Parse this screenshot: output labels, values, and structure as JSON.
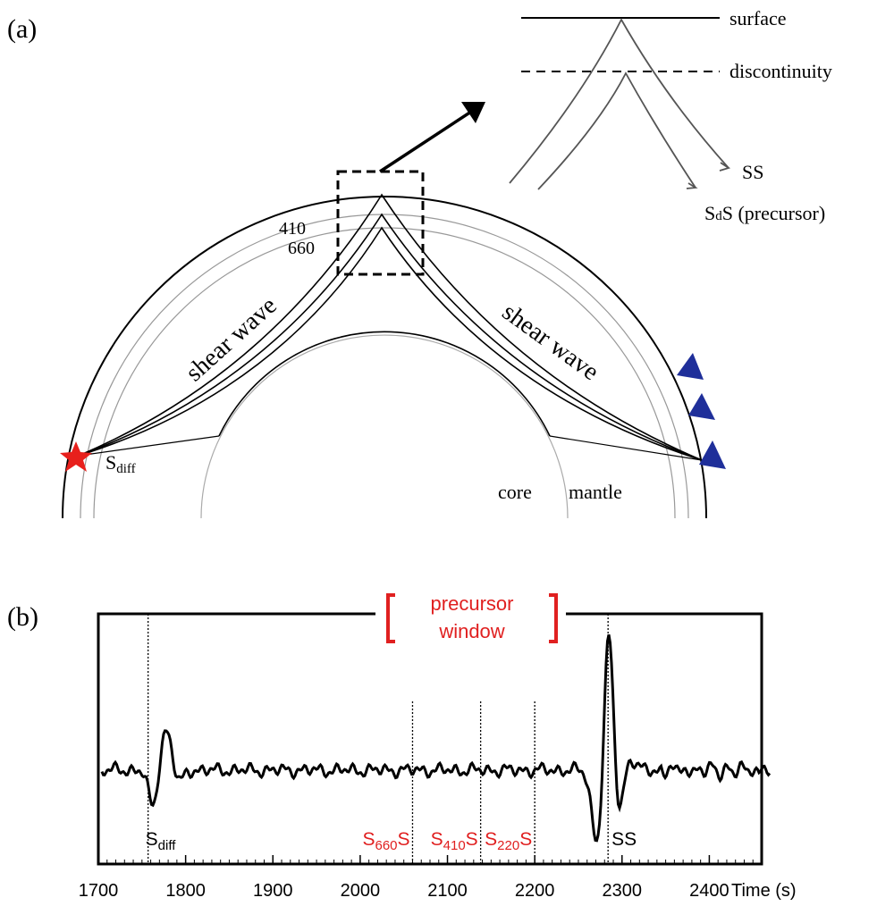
{
  "panel_a": {
    "label": "(a)",
    "surface": "surface",
    "discontinuity": "discontinuity",
    "ss": "SS",
    "sds": {
      "base": "S",
      "sub": "d",
      "rest": "S (precursor)"
    },
    "depth_410": "410",
    "depth_660": "660",
    "shear_wave_left": "shear wave",
    "shear_wave_right": "shear wave",
    "sdiff": {
      "base": "S",
      "sub": "diff"
    },
    "core": "core",
    "mantle": "mantle"
  },
  "panel_b": {
    "label": "(b)",
    "window": [
      "precursor",
      "window"
    ],
    "window_color": "#e02020",
    "xlabel": "Time (s)",
    "xlim": [
      1700,
      2460
    ],
    "xticks": [
      1700,
      1800,
      1900,
      2000,
      2100,
      2200,
      2300,
      2400
    ],
    "phases": [
      {
        "base": "S",
        "sub": "diff",
        "rest": "",
        "time": 1757,
        "color": "#000000"
      },
      {
        "base": "S",
        "sub": "660",
        "rest": "S",
        "time": 2060,
        "color": "#e02020"
      },
      {
        "base": "S",
        "sub": "410",
        "rest": "S",
        "time": 2138,
        "color": "#e02020"
      },
      {
        "base": "S",
        "sub": "220",
        "rest": "S",
        "time": 2200,
        "color": "#e02020"
      },
      {
        "base": "SS",
        "sub": "",
        "rest": "",
        "time": 2284,
        "color": "#000000"
      }
    ]
  }
}
